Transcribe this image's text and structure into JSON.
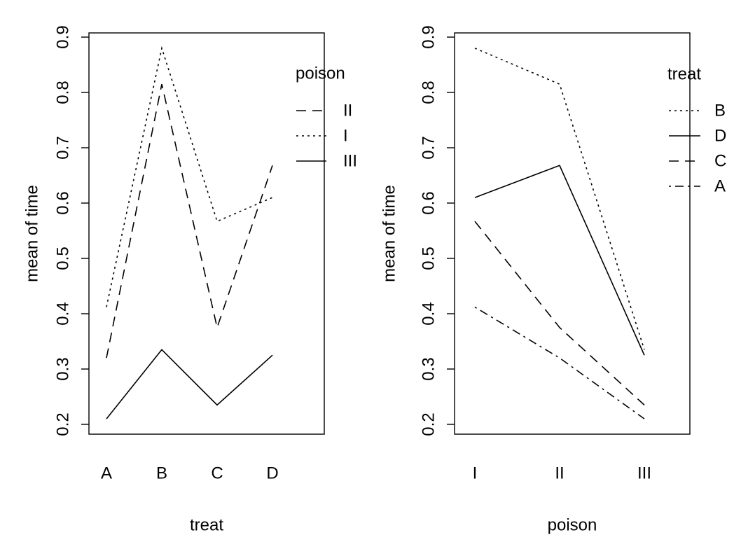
{
  "chart_data": [
    {
      "type": "line",
      "xlabel": "treat",
      "ylabel": "mean of  time",
      "categories": [
        "A",
        "B",
        "C",
        "D"
      ],
      "ylim": [
        0.2,
        0.9
      ],
      "yticks": [
        "0.2",
        "0.3",
        "0.4",
        "0.5",
        "0.6",
        "0.7",
        "0.8",
        "0.9"
      ],
      "legend": {
        "title": "poison",
        "position": "top-right"
      },
      "series": [
        {
          "name": "II",
          "dash": "dashed",
          "values": [
            0.32,
            0.815,
            0.375,
            0.668
          ]
        },
        {
          "name": "I",
          "dash": "dotted",
          "values": [
            0.412,
            0.88,
            0.567,
            0.61
          ]
        },
        {
          "name": "III",
          "dash": "solid",
          "values": [
            0.21,
            0.335,
            0.235,
            0.325
          ]
        }
      ]
    },
    {
      "type": "line",
      "xlabel": "poison",
      "ylabel": "mean of  time",
      "categories": [
        "I",
        "II",
        "III"
      ],
      "ylim": [
        0.2,
        0.9
      ],
      "yticks": [
        "0.2",
        "0.3",
        "0.4",
        "0.5",
        "0.6",
        "0.7",
        "0.8",
        "0.9"
      ],
      "legend": {
        "title": "treat",
        "position": "top-right"
      },
      "series": [
        {
          "name": "B",
          "dash": "dotted",
          "values": [
            0.88,
            0.815,
            0.335
          ]
        },
        {
          "name": "D",
          "dash": "solid",
          "values": [
            0.61,
            0.668,
            0.325
          ]
        },
        {
          "name": "C",
          "dash": "dashed",
          "values": [
            0.567,
            0.375,
            0.235
          ]
        },
        {
          "name": "A",
          "dash": "dotdash",
          "values": [
            0.412,
            0.32,
            0.21
          ]
        }
      ]
    }
  ]
}
